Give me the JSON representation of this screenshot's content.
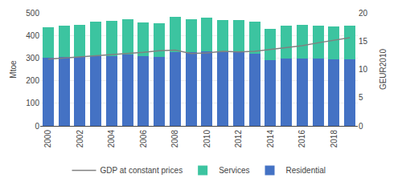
{
  "chart_data": {
    "type": "bar",
    "stacked": true,
    "x": [
      2000,
      2001,
      2002,
      2003,
      2004,
      2005,
      2006,
      2007,
      2008,
      2009,
      2010,
      2011,
      2012,
      2013,
      2014,
      2015,
      2016,
      2017,
      2018,
      2019
    ],
    "xlim": [
      1999.5,
      2019.5
    ],
    "xticks": [
      2000,
      2002,
      2004,
      2006,
      2008,
      2010,
      2012,
      2014,
      2016,
      2018
    ],
    "ylabel": "Mtoe",
    "ylim": [
      0,
      500
    ],
    "yticks": [
      0,
      100,
      200,
      300,
      400,
      500
    ],
    "y2label": "GEUR2010",
    "y2lim": [
      0,
      20
    ],
    "y2ticks": [
      0,
      5,
      10,
      15,
      20
    ],
    "grid": true,
    "legend": "bottom",
    "series": [
      {
        "name": "Residential",
        "color": "#4472C4",
        "values": [
          300,
          305,
          305,
          310,
          310,
          315,
          310,
          305,
          325,
          325,
          330,
          325,
          325,
          320,
          292,
          298,
          298,
          298,
          293,
          296
        ]
      },
      {
        "name": "Services",
        "color": "#3CC4A0",
        "values": [
          135,
          140,
          143,
          150,
          155,
          155,
          148,
          150,
          158,
          148,
          148,
          142,
          142,
          142,
          138,
          146,
          148,
          146,
          148,
          146
        ]
      },
      {
        "name": "GDP at constant prices",
        "type": "line",
        "axis": "y2",
        "color": "#808080",
        "values": [
          11.8,
          12.0,
          12.1,
          12.3,
          12.5,
          12.7,
          13.0,
          13.3,
          13.4,
          12.8,
          12.9,
          13.2,
          13.1,
          13.2,
          13.5,
          13.9,
          14.2,
          14.7,
          15.1,
          15.6
        ]
      }
    ]
  }
}
